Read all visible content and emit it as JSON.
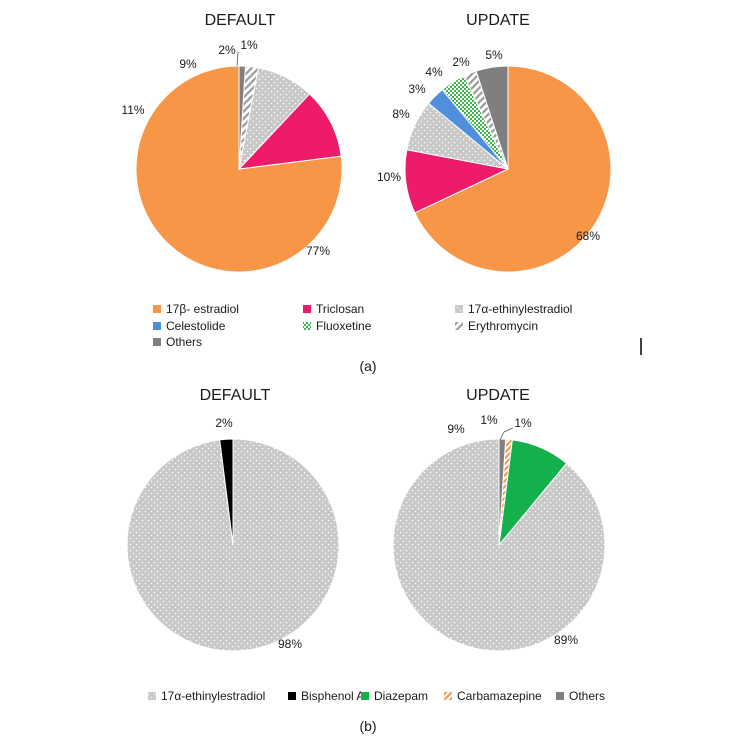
{
  "panel_a": {
    "caption": "(a)",
    "legend": [
      {
        "label": "17β- estradiol",
        "color": "#f79646",
        "pattern": "solid"
      },
      {
        "label": "Triclosan",
        "color": "#ee1a6a",
        "pattern": "solid"
      },
      {
        "label": "17α-ethinylestradiol",
        "color": "#c8c8c8",
        "pattern": "dots"
      },
      {
        "label": "Celestolide",
        "color": "#4f8fdb",
        "pattern": "solid"
      },
      {
        "label": "Fluoxetine",
        "color": "#3ab54a",
        "pattern": "checker"
      },
      {
        "label": "Erythromycin",
        "color": "#9a9a9a",
        "pattern": "hatch"
      },
      {
        "label": "Others",
        "color": "#7f7f7f",
        "pattern": "solid"
      }
    ]
  },
  "panel_b": {
    "caption": "(b)",
    "legend": [
      {
        "label": "17α-ethinylestradiol",
        "color": "#c8c8c8",
        "pattern": "dots"
      },
      {
        "label": "Bisphenol A",
        "color": "#000000",
        "pattern": "solid"
      },
      {
        "label": "Diazepam",
        "color": "#13b04b",
        "pattern": "solid"
      },
      {
        "label": "Carbamazepine",
        "color": "#f79646",
        "pattern": "hatch"
      },
      {
        "label": "Others",
        "color": "#7f7f7f",
        "pattern": "solid"
      }
    ]
  },
  "chart_data": [
    {
      "type": "pie",
      "panel": "a",
      "title": "DEFAULT",
      "slices": [
        {
          "name": "17β- estradiol",
          "value": 77,
          "label": "77%"
        },
        {
          "name": "Triclosan",
          "value": 11,
          "label": "11%"
        },
        {
          "name": "17α-ethinylestradiol",
          "value": 9,
          "label": "9%"
        },
        {
          "name": "Erythromycin",
          "value": 2,
          "label": "2%"
        },
        {
          "name": "Others",
          "value": 1,
          "label": "1%"
        }
      ]
    },
    {
      "type": "pie",
      "panel": "a",
      "title": "UPDATE",
      "slices": [
        {
          "name": "17β- estradiol",
          "value": 68,
          "label": "68%"
        },
        {
          "name": "Triclosan",
          "value": 10,
          "label": "10%"
        },
        {
          "name": "17α-ethinylestradiol",
          "value": 8,
          "label": "8%"
        },
        {
          "name": "Celestolide",
          "value": 3,
          "label": "3%"
        },
        {
          "name": "Fluoxetine",
          "value": 4,
          "label": "4%"
        },
        {
          "name": "Erythromycin",
          "value": 2,
          "label": "2%"
        },
        {
          "name": "Others",
          "value": 5,
          "label": "5%"
        }
      ]
    },
    {
      "type": "pie",
      "panel": "b",
      "title": "DEFAULT",
      "slices": [
        {
          "name": "17α-ethinylestradiol",
          "value": 98,
          "label": "98%"
        },
        {
          "name": "Bisphenol A",
          "value": 2,
          "label": "2%"
        }
      ]
    },
    {
      "type": "pie",
      "panel": "b",
      "title": "UPDATE",
      "slices": [
        {
          "name": "17α-ethinylestradiol",
          "value": 89,
          "label": "89%"
        },
        {
          "name": "Diazepam",
          "value": 9,
          "label": "9%"
        },
        {
          "name": "Carbamazepine",
          "value": 1,
          "label": "1%"
        },
        {
          "name": "Others",
          "value": 1,
          "label": "1%"
        }
      ]
    }
  ]
}
